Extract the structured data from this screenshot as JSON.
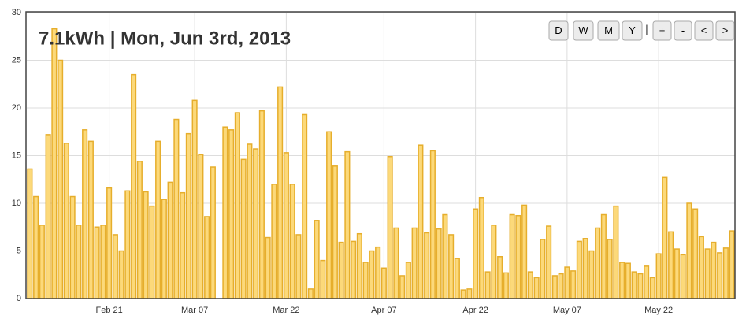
{
  "chart_data": {
    "type": "bar",
    "title": "7.1kWh | Mon, Jun 3rd, 2013",
    "buttons": [
      "D",
      "W",
      "M",
      "Y",
      "+",
      "-",
      "<",
      ">"
    ],
    "separator": "|",
    "categories": [
      null,
      null,
      null,
      null,
      null,
      null,
      null,
      null,
      null,
      null,
      null,
      null,
      null,
      "Feb 21",
      null,
      null,
      null,
      null,
      null,
      null,
      null,
      null,
      null,
      null,
      null,
      null,
      null,
      "Mar 07",
      null,
      null,
      null,
      null,
      null,
      null,
      null,
      null,
      null,
      null,
      null,
      null,
      null,
      null,
      "Mar 22",
      null,
      null,
      null,
      null,
      null,
      null,
      null,
      null,
      null,
      null,
      null,
      null,
      null,
      null,
      null,
      "Apr 07",
      null,
      null,
      null,
      null,
      null,
      null,
      null,
      null,
      null,
      null,
      null,
      null,
      null,
      null,
      "Apr 22",
      null,
      null,
      null,
      null,
      null,
      null,
      null,
      null,
      null,
      null,
      null,
      null,
      null,
      null,
      "May 07",
      null,
      null,
      null,
      null,
      null,
      null,
      null,
      null,
      null,
      null,
      null,
      null,
      null,
      null,
      "May 22",
      null,
      null,
      null,
      null,
      null,
      null,
      null,
      null,
      null,
      null,
      null,
      null
    ],
    "values": [
      13.6,
      10.7,
      7.7,
      17.2,
      28.3,
      25.0,
      16.3,
      10.7,
      7.7,
      17.7,
      16.5,
      7.5,
      7.7,
      11.6,
      6.7,
      5.0,
      11.3,
      23.5,
      14.4,
      11.2,
      9.7,
      16.5,
      10.4,
      12.2,
      18.8,
      11.1,
      17.3,
      20.8,
      15.1,
      8.6,
      13.8,
      0,
      18.0,
      17.7,
      19.5,
      14.6,
      16.2,
      15.7,
      19.7,
      6.4,
      12.0,
      22.2,
      15.3,
      12.0,
      6.7,
      19.3,
      1.0,
      8.2,
      4.0,
      17.5,
      13.9,
      5.9,
      15.4,
      6.0,
      6.8,
      3.8,
      5.0,
      5.4,
      3.2,
      14.9,
      7.4,
      2.4,
      3.8,
      7.4,
      16.1,
      6.9,
      15.5,
      7.3,
      8.8,
      6.7,
      4.2,
      0.9,
      1.0,
      9.4,
      10.6,
      2.8,
      7.7,
      4.4,
      2.7,
      8.8,
      8.7,
      9.8,
      2.8,
      2.2,
      6.2,
      7.6,
      2.4,
      2.6,
      3.3,
      2.9,
      6.0,
      6.3,
      5.0,
      7.4,
      8.8,
      6.2,
      9.7,
      3.8,
      3.7,
      2.8,
      2.6,
      3.4,
      2.2,
      4.7,
      12.7,
      7.0,
      5.2,
      4.6,
      10.0,
      9.4,
      6.5,
      5.2,
      5.9,
      4.8,
      5.3,
      7.1
    ],
    "color": "#fcd97a",
    "edge_color": "#e6ae2c",
    "ylim": [
      0,
      30
    ],
    "yticks": [
      0,
      5,
      10,
      15,
      20,
      25,
      30
    ],
    "grid": true
  }
}
